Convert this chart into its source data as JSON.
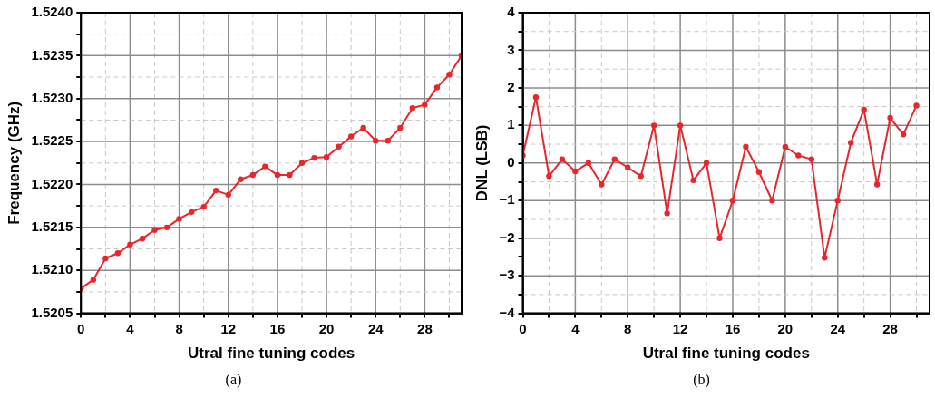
{
  "chart_data": [
    {
      "type": "line",
      "xlabel": "Utral fine tuning codes",
      "ylabel": "Frequency (GHz)",
      "annotations": [
        "(a)"
      ],
      "marker": "circle",
      "grid": true,
      "legend": false,
      "xlim": [
        0,
        31
      ],
      "ylim": [
        1.5205,
        1.524
      ],
      "xticks": [
        0,
        {
          "value": 2,
          "label": null
        },
        4,
        {
          "value": 6,
          "label": null
        },
        8,
        {
          "value": 10,
          "label": null
        },
        12,
        {
          "value": 14,
          "label": null
        },
        16,
        {
          "value": 18,
          "label": null
        },
        20,
        {
          "value": 22,
          "label": null
        },
        24,
        {
          "value": 26,
          "label": null
        },
        28,
        {
          "value": 30,
          "label": null
        }
      ],
      "yticks": [
        {
          "value": 1.5205,
          "label": "1.5205"
        },
        {
          "value": 1.52075,
          "label": null
        },
        {
          "value": 1.521,
          "label": "1.5210"
        },
        {
          "value": 1.52125,
          "label": null
        },
        {
          "value": 1.5215,
          "label": "1.5215"
        },
        {
          "value": 1.52175,
          "label": null
        },
        {
          "value": 1.522,
          "label": "1.5220"
        },
        {
          "value": 1.52225,
          "label": null
        },
        {
          "value": 1.5225,
          "label": "1.5225"
        },
        {
          "value": 1.52275,
          "label": null
        },
        {
          "value": 1.523,
          "label": "1.5230"
        },
        {
          "value": 1.52325,
          "label": null
        },
        {
          "value": 1.5235,
          "label": "1.5235"
        },
        {
          "value": 1.52375,
          "label": null
        },
        {
          "value": 1.524,
          "label": "1.5240"
        }
      ],
      "x": [
        0,
        1,
        2,
        3,
        4,
        5,
        6,
        7,
        8,
        9,
        10,
        11,
        12,
        13,
        14,
        15,
        16,
        17,
        18,
        19,
        20,
        21,
        22,
        23,
        24,
        25,
        26,
        27,
        28,
        29,
        30,
        31
      ],
      "series": [
        {
          "color": "#e8262c",
          "values": [
            1.52079,
            1.52089,
            1.52114,
            1.5212,
            1.5213,
            1.52137,
            1.52147,
            1.5215,
            1.5216,
            1.52168,
            1.52174,
            1.52193,
            1.52188,
            1.52206,
            1.52211,
            1.52221,
            1.52211,
            1.52211,
            1.52225,
            1.52231,
            1.52232,
            1.52244,
            1.52256,
            1.52266,
            1.52251,
            1.52251,
            1.52266,
            1.52289,
            1.52293,
            1.52313,
            1.52328,
            1.5235
          ]
        }
      ]
    },
    {
      "type": "line",
      "xlabel": "Utral fine tuning codes",
      "ylabel": "DNL (LSB)",
      "annotations": [
        "(b)"
      ],
      "marker": "circle",
      "grid": true,
      "legend": false,
      "xlim": [
        0,
        31
      ],
      "ylim": [
        -4,
        4
      ],
      "xticks": [
        0,
        {
          "value": 2,
          "label": null
        },
        4,
        {
          "value": 6,
          "label": null
        },
        8,
        {
          "value": 10,
          "label": null
        },
        12,
        {
          "value": 14,
          "label": null
        },
        16,
        {
          "value": 18,
          "label": null
        },
        20,
        {
          "value": 22,
          "label": null
        },
        24,
        {
          "value": 26,
          "label": null
        },
        28,
        {
          "value": 30,
          "label": null
        }
      ],
      "yticks": [
        {
          "value": -4,
          "label": "−4"
        },
        {
          "value": -3.5,
          "label": null
        },
        {
          "value": -3,
          "label": "−3"
        },
        {
          "value": -2.5,
          "label": null
        },
        {
          "value": -2,
          "label": "−2"
        },
        {
          "value": -1.5,
          "label": null
        },
        {
          "value": -1,
          "label": "−1"
        },
        {
          "value": -0.5,
          "label": null
        },
        0,
        {
          "value": 0.5,
          "label": null
        },
        1,
        {
          "value": 1.5,
          "label": null
        },
        2,
        {
          "value": 2.5,
          "label": null
        },
        3,
        {
          "value": 3.5,
          "label": null
        },
        4
      ],
      "x": [
        0,
        1,
        2,
        3,
        4,
        5,
        6,
        7,
        8,
        9,
        10,
        11,
        12,
        13,
        14,
        15,
        16,
        17,
        18,
        19,
        20,
        21,
        22,
        23,
        24,
        25,
        26,
        27,
        28,
        29,
        30
      ],
      "series": [
        {
          "color": "#e8262c",
          "values": [
            0.2,
            1.75,
            -0.35,
            0.1,
            -0.22,
            0,
            -0.57,
            0.1,
            -0.12,
            -0.35,
            1.0,
            -1.34,
            1.0,
            -0.46,
            0,
            -2.0,
            -1.0,
            0.43,
            -0.24,
            -1.0,
            0.43,
            0.2,
            0.1,
            -2.52,
            -1.0,
            0.54,
            1.42,
            -0.57,
            1.2,
            0.76,
            1.53
          ]
        }
      ]
    }
  ]
}
